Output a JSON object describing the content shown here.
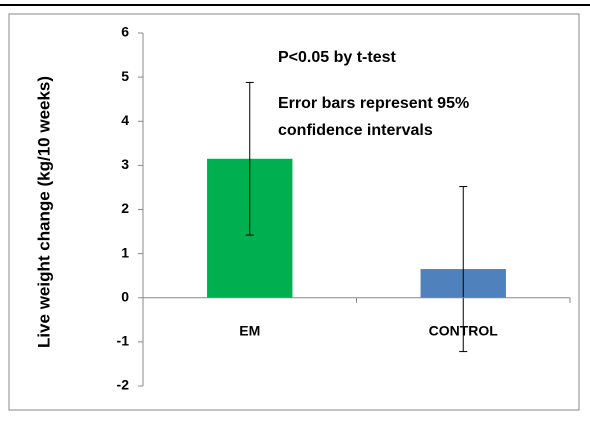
{
  "chart_data": {
    "type": "bar",
    "ylabel": "Live weight change (kg/10 weeks)",
    "annotations": [
      "P<0.05 by t-test",
      "Error bars represent 95%",
      "confidence intervals"
    ],
    "categories": [
      "EM",
      "CONTROL"
    ],
    "values": [
      3.15,
      0.65
    ],
    "errors": [
      1.73,
      1.87
    ],
    "colors": [
      "#00b050",
      "#4f81bd"
    ],
    "ylim": [
      -2,
      6
    ],
    "yticks": [
      -2,
      -1,
      0,
      1,
      2,
      3,
      4,
      5,
      6
    ],
    "grid": false
  }
}
